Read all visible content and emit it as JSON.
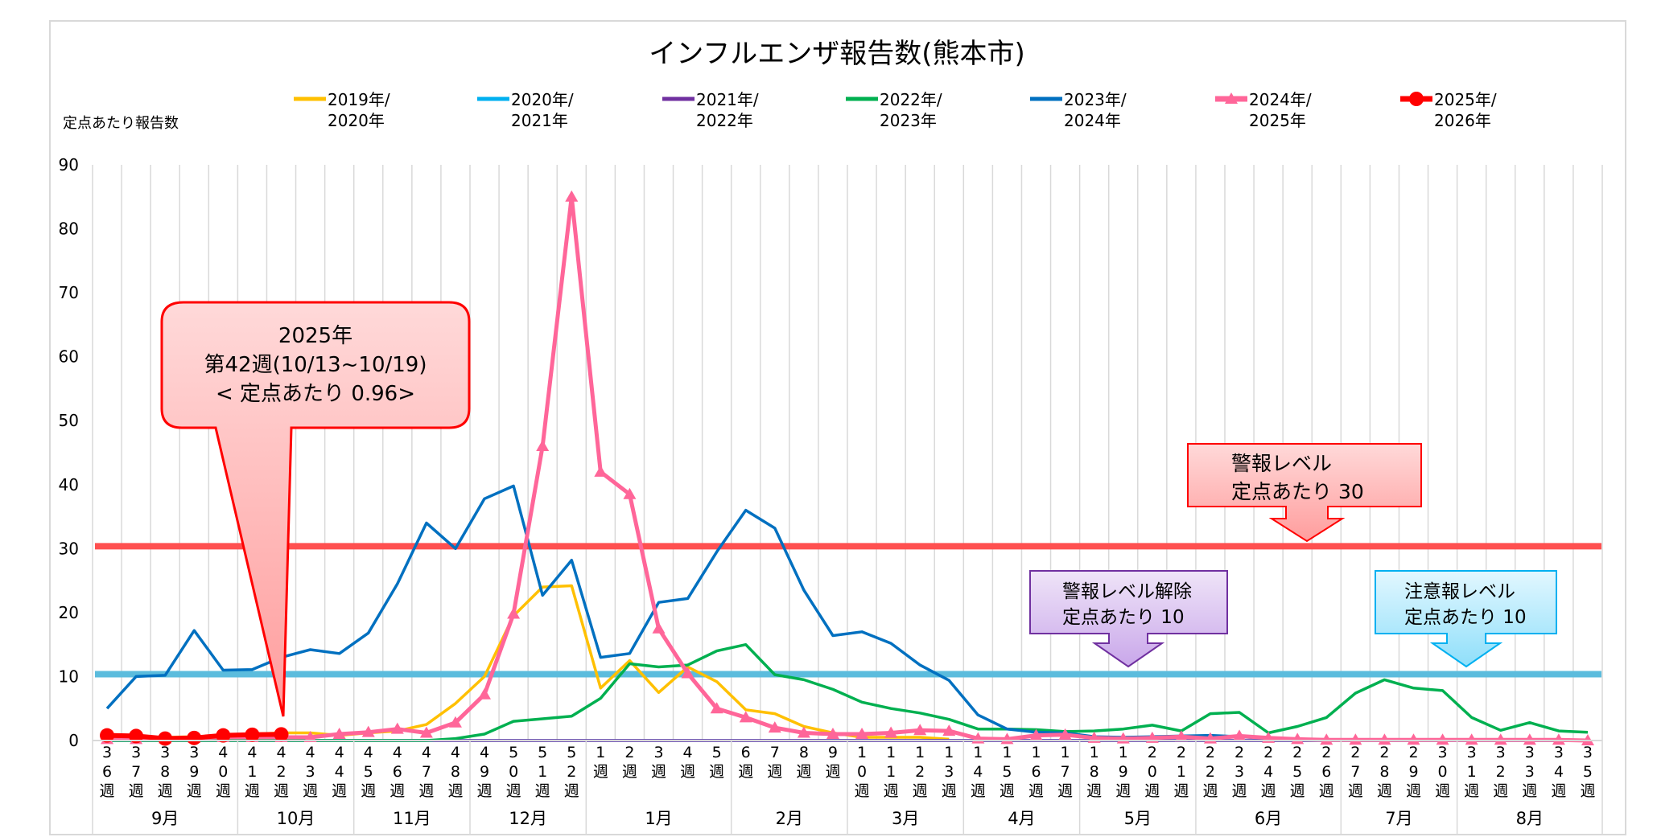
{
  "chart_data": {
    "type": "line",
    "title": "インフルエンザ報告数(熊本市)",
    "ylabel": "定点あたり報告数",
    "ylim": [
      0,
      90
    ],
    "yticks": [
      0,
      10,
      20,
      30,
      40,
      50,
      60,
      70,
      80,
      90
    ],
    "grid": "vertical",
    "legend_position": "top",
    "categories": [
      "36週",
      "37週",
      "38週",
      "39週",
      "40週",
      "41週",
      "42週",
      "43週",
      "44週",
      "45週",
      "46週",
      "47週",
      "48週",
      "49週",
      "50週",
      "51週",
      "52週",
      "1週",
      "2週",
      "3週",
      "4週",
      "5週",
      "6週",
      "7週",
      "8週",
      "9週",
      "10週",
      "11週",
      "12週",
      "13週",
      "14週",
      "15週",
      "16週",
      "17週",
      "18週",
      "19週",
      "20週",
      "21週",
      "22週",
      "23週",
      "24週",
      "25週",
      "26週",
      "27週",
      "28週",
      "29週",
      "30週",
      "31週",
      "32週",
      "33週",
      "34週",
      "35週"
    ],
    "months": [
      {
        "label": "9月",
        "weeks": 5
      },
      {
        "label": "10月",
        "weeks": 4
      },
      {
        "label": "11月",
        "weeks": 4
      },
      {
        "label": "12月",
        "weeks": 4
      },
      {
        "label": "1月",
        "weeks": 5
      },
      {
        "label": "2月",
        "weeks": 4
      },
      {
        "label": "3月",
        "weeks": 4
      },
      {
        "label": "4月",
        "weeks": 4
      },
      {
        "label": "5月",
        "weeks": 4
      },
      {
        "label": "6月",
        "weeks": 5
      },
      {
        "label": "7月",
        "weeks": 4
      },
      {
        "label": "8月",
        "weeks": 5
      }
    ],
    "series": [
      {
        "name": "2019年/2020年",
        "color": "#FFC000",
        "marker": "none",
        "values": [
          0.5,
          0.5,
          0.5,
          0.6,
          0.8,
          1.0,
          1.2,
          1.2,
          0.8,
          1.2,
          1.5,
          2.5,
          5.8,
          10,
          19.5,
          24,
          24.2,
          8.2,
          12.5,
          7.5,
          11.5,
          9.2,
          4.8,
          4.2,
          2.2,
          1.2,
          0.5,
          0.5,
          0.5,
          0.2,
          null,
          null,
          null,
          null,
          null,
          null,
          null,
          null,
          null,
          null,
          null,
          null,
          null,
          null,
          null,
          null,
          null,
          null,
          null,
          null,
          null,
          null
        ]
      },
      {
        "name": "2020年/2021年",
        "color": "#00B0F0",
        "marker": "none",
        "values": [
          0,
          0,
          0,
          0,
          0,
          0,
          0,
          0,
          0,
          0,
          0,
          0,
          0,
          0,
          0,
          0,
          0,
          0,
          0,
          0,
          0,
          0,
          0,
          0,
          0,
          0,
          0,
          0,
          0,
          0,
          0,
          0,
          0,
          0,
          0,
          0,
          0,
          0,
          0,
          0,
          0,
          0,
          0,
          0,
          0,
          0,
          0,
          0,
          0,
          0,
          0,
          0
        ]
      },
      {
        "name": "2021年/2022年",
        "color": "#7030A0",
        "marker": "none",
        "values": [
          0,
          0,
          0,
          0,
          0,
          0,
          0,
          0,
          0,
          0,
          0,
          0,
          0,
          0,
          0,
          0,
          0,
          0,
          0,
          0,
          0,
          0,
          0,
          0,
          0,
          0,
          0,
          0,
          0,
          0,
          0,
          0,
          0,
          0,
          0,
          0,
          0,
          0,
          0,
          0,
          0,
          0,
          0,
          0,
          0,
          0,
          0,
          0,
          0,
          0,
          0,
          0
        ]
      },
      {
        "name": "2022年/2023年",
        "color": "#00B050",
        "marker": "none",
        "values": [
          0,
          0,
          0,
          0,
          0,
          0,
          0,
          0,
          0,
          0,
          0,
          0,
          0.3,
          1,
          3,
          3.4,
          3.8,
          6.6,
          12,
          11.5,
          11.8,
          14,
          15,
          10.3,
          9.5,
          8,
          6,
          5,
          4.3,
          3.3,
          1.8,
          1.8,
          1.7,
          1.4,
          1.5,
          1.8,
          2.4,
          1.5,
          4.2,
          4.4,
          1.2,
          2.2,
          3.6,
          7.4,
          9.5,
          8.2,
          7.8,
          3.6,
          1.6,
          2.8,
          1.5,
          1.3
        ]
      },
      {
        "name": "2023年/2024年",
        "color": "#0070C0",
        "marker": "none",
        "values": [
          5,
          10,
          10.2,
          17.2,
          11,
          11.1,
          13,
          14.2,
          13.6,
          16.8,
          24.5,
          34,
          30,
          37.8,
          39.8,
          22.7,
          28.2,
          13,
          13.6,
          21.6,
          22.2,
          29.5,
          36,
          33.2,
          23.5,
          16.4,
          17,
          15.2,
          11.8,
          9.4,
          4,
          1.8,
          1.3,
          1.2,
          0.6,
          0.5,
          0.6,
          0.7,
          0.8,
          0.6,
          0.3,
          0.2,
          null,
          null,
          null,
          null,
          null,
          null,
          null,
          null,
          null,
          null
        ]
      },
      {
        "name": "2024年/2025年",
        "color": "#FF6699",
        "marker": "triangle",
        "values": [
          0.2,
          0.2,
          0.3,
          0.4,
          0.5,
          0.5,
          0.5,
          0.5,
          1,
          1.3,
          1.8,
          1.2,
          2.8,
          7.2,
          19.8,
          46,
          85,
          42,
          38.5,
          17.5,
          10.5,
          5,
          3.6,
          2,
          1.2,
          1,
          1,
          1.2,
          1.6,
          1.5,
          0.3,
          0.2,
          0.8,
          0.9,
          0.4,
          0.3,
          0.4,
          0.6,
          0.3,
          0.7,
          0.4,
          0.2,
          0.1,
          0.1,
          0.1,
          0.1,
          0.1,
          0.1,
          0.1,
          0.1,
          0.1,
          0
        ]
      },
      {
        "name": "2025年/2026年",
        "color": "#FF0000",
        "marker": "circle",
        "values": [
          0.8,
          0.7,
          0.3,
          0.4,
          0.8,
          0.9,
          0.96,
          null,
          null,
          null,
          null,
          null,
          null,
          null,
          null,
          null,
          null,
          null,
          null,
          null,
          null,
          null,
          null,
          null,
          null,
          null,
          null,
          null,
          null,
          null,
          null,
          null,
          null,
          null,
          null,
          null,
          null,
          null,
          null,
          null,
          null,
          null,
          null,
          null,
          null,
          null,
          null,
          null,
          null,
          null,
          null,
          null
        ]
      }
    ],
    "legend": [
      {
        "line1": "2019年/",
        "line2": "2020年"
      },
      {
        "line1": "2020年/",
        "line2": "2021年"
      },
      {
        "line1": "2021年/",
        "line2": "2022年"
      },
      {
        "line1": "2022年/",
        "line2": "2023年"
      },
      {
        "line1": "2023年/",
        "line2": "2024年"
      },
      {
        "line1": "2024年/",
        "line2": "2025年"
      },
      {
        "line1": "2025年/",
        "line2": "2026年"
      }
    ],
    "thresholds": [
      {
        "value": 30,
        "color": "#FF5050"
      },
      {
        "value": 10,
        "color": "#5BBCDD"
      }
    ],
    "annotations": {
      "current": {
        "line1": "2025年",
        "line2": "第42週(10/13~10/19)",
        "line3": "< 定点あたり  0.96>",
        "week": "42週",
        "value": 0.96
      },
      "alert": {
        "line1": "警報レベル",
        "line2": "定点あたり 30"
      },
      "alert_end": {
        "line1": "警報レベル解除",
        "line2": "定点あたり  10"
      },
      "advisory": {
        "line1": "注意報レベル",
        "line2": "定点あたり 10"
      }
    }
  }
}
